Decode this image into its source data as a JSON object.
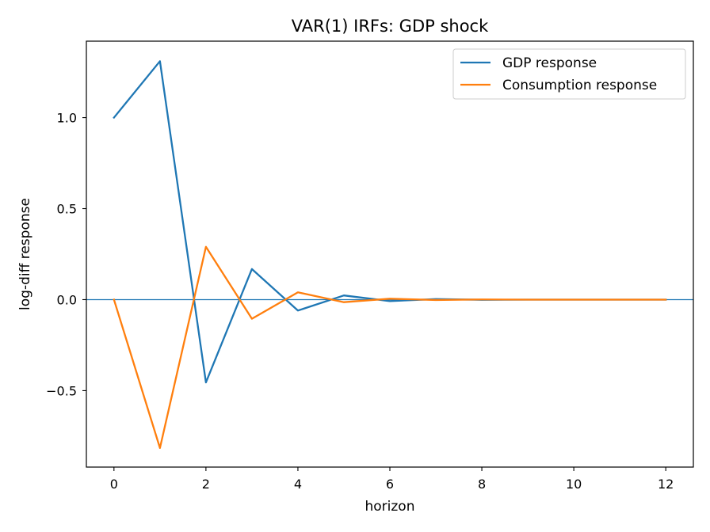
{
  "chart_data": {
    "type": "line",
    "title": "VAR(1) IRFs: GDP shock",
    "xlabel": "horizon",
    "ylabel": "log-diff response",
    "x": [
      0,
      1,
      2,
      3,
      4,
      5,
      6,
      7,
      8,
      9,
      10,
      11,
      12
    ],
    "xlim": [
      -0.6,
      12.6
    ],
    "ylim": [
      -0.92,
      1.42
    ],
    "xticks": [
      0,
      2,
      4,
      6,
      8,
      10,
      12
    ],
    "xtick_labels": [
      "0",
      "2",
      "4",
      "6",
      "8",
      "10",
      "12"
    ],
    "yticks": [
      -0.5,
      0.0,
      0.5,
      1.0
    ],
    "ytick_labels": [
      "−0.5",
      "0.0",
      "0.5",
      "1.0"
    ],
    "reference_line": {
      "y": 0,
      "color": "#1f77b4"
    },
    "grid": false,
    "legend_position": "top-right",
    "series": [
      {
        "name": "GDP response",
        "color": "#1f77b4",
        "values": [
          1.0,
          1.31,
          -0.455,
          0.168,
          -0.06,
          0.023,
          -0.008,
          0.003,
          -0.001,
          0.0,
          0.0,
          0.0,
          0.0
        ]
      },
      {
        "name": "Consumption response",
        "color": "#ff7f0e",
        "values": [
          0.0,
          -0.815,
          0.29,
          -0.105,
          0.04,
          -0.014,
          0.005,
          -0.002,
          0.001,
          0.0,
          0.0,
          0.0,
          0.0
        ]
      }
    ]
  }
}
